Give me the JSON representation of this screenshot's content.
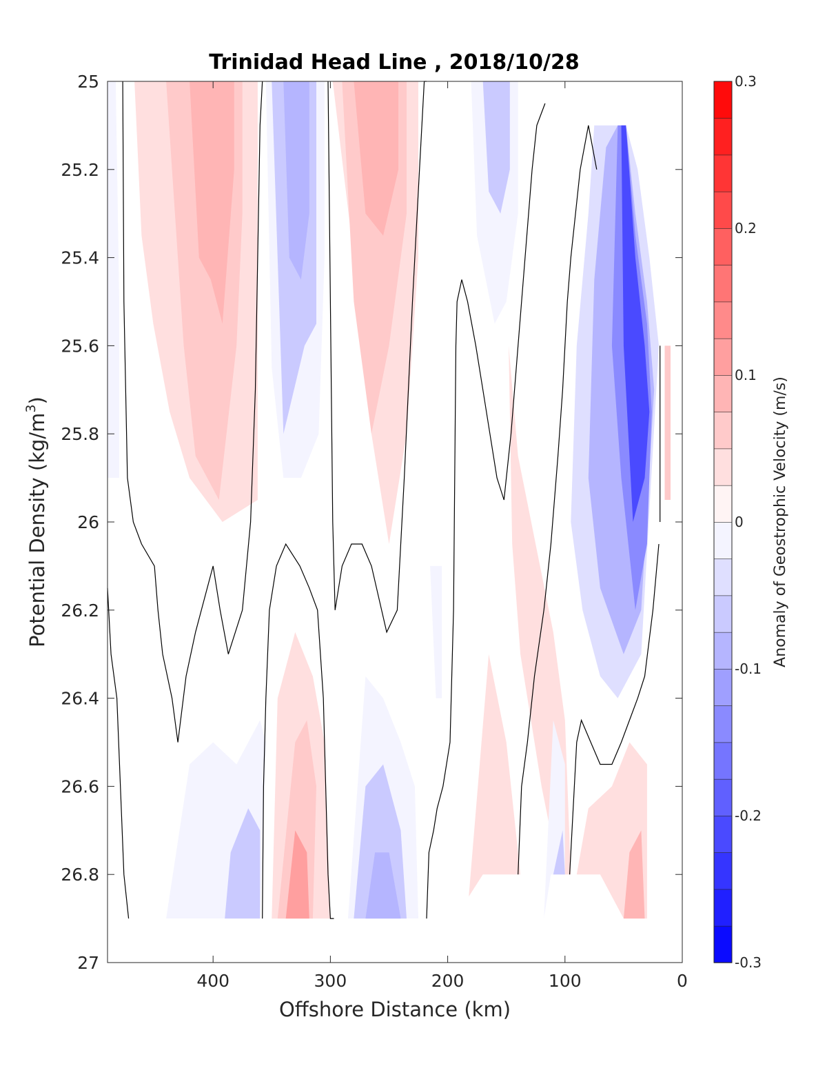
{
  "chart_data": {
    "type": "contour",
    "title": "Trinidad Head Line , 2018/10/28",
    "xlabel": "Offshore Distance (km)",
    "ylabel_main": "Potential Density (kg/m",
    "ylabel_sup": "3",
    "ylabel_close": ")",
    "x_ticks": [
      "400",
      "300",
      "200",
      "100",
      "0"
    ],
    "x_tick_values": [
      400,
      300,
      200,
      100,
      0
    ],
    "xlim": [
      490,
      0
    ],
    "x_reversed": true,
    "y_ticks": [
      "25",
      "25.2",
      "25.4",
      "25.6",
      "25.8",
      "26",
      "26.2",
      "26.4",
      "26.6",
      "26.8",
      "27"
    ],
    "y_tick_values": [
      25,
      25.2,
      25.4,
      25.6,
      25.8,
      26,
      26.2,
      26.4,
      26.6,
      26.8,
      27
    ],
    "ylim": [
      25,
      27
    ],
    "y_reversed": true,
    "colorbar": {
      "label": "Anomaly of Geostrophic Velocity (m/s)",
      "ticks": [
        "0.3",
        "0.2",
        "0.1",
        "0",
        "-0.1",
        "-0.2",
        "-0.3"
      ],
      "tick_values": [
        0.3,
        0.2,
        0.1,
        0,
        -0.1,
        -0.2,
        -0.3
      ],
      "range": [
        -0.3,
        0.3
      ],
      "levels": 24,
      "colormap": "blue-white-red"
    },
    "regions": [
      {
        "x": [
          490,
          488,
          483,
          480,
          480,
          490
        ],
        "y": [
          25,
          25,
          25,
          25.5,
          25.9,
          25.9
        ],
        "value": -0.025
      },
      {
        "x": [
          467,
          450,
          430,
          420,
          400,
          380,
          370,
          368,
          362,
          362,
          392,
          420,
          437,
          451,
          461,
          467
        ],
        "y": [
          25,
          25,
          25,
          25,
          25,
          25,
          25,
          25,
          25,
          25.95,
          26.0,
          25.9,
          25.75,
          25.55,
          25.35,
          25
        ],
        "value": 0.025
      },
      {
        "x": [
          440,
          430,
          410,
          395,
          385,
          375,
          375,
          380,
          395,
          415,
          425,
          430,
          440
        ],
        "y": [
          25,
          25,
          25,
          25,
          25,
          25,
          25.3,
          25.6,
          25.95,
          25.85,
          25.6,
          25.4,
          25
        ],
        "value": 0.06
      },
      {
        "x": [
          420,
          410,
          400,
          392,
          382,
          382,
          392,
          402,
          412,
          420
        ],
        "y": [
          25,
          25,
          25,
          25,
          25,
          25.2,
          25.55,
          25.45,
          25.4,
          25
        ],
        "value": 0.09
      },
      {
        "x": [
          355,
          345,
          325,
          310,
          305,
          305,
          310,
          325,
          340,
          350,
          355
        ],
        "y": [
          25,
          25,
          25,
          25,
          25,
          25.4,
          25.8,
          25.9,
          25.9,
          25.65,
          25
        ],
        "value": -0.025
      },
      {
        "x": [
          350,
          340,
          325,
          312,
          312,
          322,
          340,
          350
        ],
        "y": [
          25,
          25,
          25,
          25,
          25.55,
          25.6,
          25.8,
          25
        ],
        "value": -0.06
      },
      {
        "x": [
          340,
          330,
          320,
          318,
          318,
          325,
          335,
          340
        ],
        "y": [
          25,
          25,
          25,
          25,
          25.3,
          25.45,
          25.4,
          25
        ],
        "value": -0.09
      },
      {
        "x": [
          298,
          280,
          260,
          240,
          225,
          225,
          235,
          250,
          265,
          280,
          298
        ],
        "y": [
          25,
          25,
          25,
          25,
          25,
          25.4,
          25.8,
          26.05,
          25.8,
          25.4,
          25
        ],
        "value": 0.025
      },
      {
        "x": [
          290,
          270,
          250,
          235,
          235,
          250,
          265,
          280,
          290
        ],
        "y": [
          25,
          25,
          25,
          25,
          25.3,
          25.6,
          25.8,
          25.5,
          25
        ],
        "value": 0.06
      },
      {
        "x": [
          280,
          265,
          250,
          242,
          242,
          255,
          270,
          280
        ],
        "y": [
          25,
          25,
          25,
          25,
          25.2,
          25.35,
          25.3,
          25
        ],
        "value": 0.09
      },
      {
        "x": [
          180,
          160,
          150,
          140,
          140,
          150,
          160,
          175,
          180
        ],
        "y": [
          25,
          25,
          25,
          25,
          25.3,
          25.5,
          25.55,
          25.35,
          25
        ],
        "value": -0.025
      },
      {
        "x": [
          170,
          160,
          150,
          147,
          147,
          155,
          165,
          170
        ],
        "y": [
          25,
          25,
          25,
          25,
          25.2,
          25.3,
          25.25,
          25
        ],
        "value": -0.06
      },
      {
        "x": [
          148,
          140,
          125,
          110,
          100,
          95,
          105,
          120,
          138,
          145,
          148
        ],
        "y": [
          25.6,
          25.85,
          26.05,
          26.25,
          26.45,
          26.8,
          26.8,
          26.6,
          26.3,
          26.05,
          25.6
        ],
        "value": 0.025
      },
      {
        "x": [
          75,
          70,
          60,
          48,
          38,
          28,
          20,
          35,
          55,
          70,
          85,
          95,
          90,
          80,
          75
        ],
        "y": [
          25.1,
          25.1,
          25.1,
          25.1,
          25.2,
          25.4,
          25.6,
          26.3,
          26.4,
          26.35,
          26.2,
          26.0,
          25.6,
          25.3,
          25.1
        ],
        "value": -0.03
      },
      {
        "x": [
          65,
          55,
          48,
          40,
          30,
          24,
          35,
          50,
          70,
          80,
          75,
          65
        ],
        "y": [
          25.15,
          25.1,
          25.1,
          25.3,
          25.5,
          25.7,
          26.2,
          26.3,
          26.15,
          25.9,
          25.45,
          25.15
        ],
        "value": -0.09
      },
      {
        "x": [
          55,
          48,
          40,
          30,
          26,
          30,
          40,
          52,
          60,
          55
        ],
        "y": [
          25.1,
          25.1,
          25.35,
          25.55,
          25.75,
          26.05,
          26.2,
          25.9,
          25.6,
          25.1
        ],
        "value": -0.15
      },
      {
        "x": [
          52,
          48,
          40,
          32,
          28,
          32,
          42,
          50,
          52
        ],
        "y": [
          25.1,
          25.1,
          25.4,
          25.6,
          25.75,
          25.9,
          26.0,
          25.6,
          25.1
        ],
        "value": -0.22
      },
      {
        "x": [
          15,
          10,
          10,
          15
        ],
        "y": [
          25.6,
          25.6,
          25.95,
          25.95
        ],
        "value": 0.05
      },
      {
        "x": [
          440,
          420,
          400,
          380,
          360,
          355,
          360,
          380,
          400,
          420,
          440
        ],
        "y": [
          26.9,
          26.9,
          26.9,
          26.9,
          26.9,
          26.5,
          26.45,
          26.55,
          26.5,
          26.55,
          26.9
        ],
        "value": -0.025
      },
      {
        "x": [
          390,
          375,
          360,
          360,
          370,
          385,
          390
        ],
        "y": [
          26.9,
          26.9,
          26.9,
          26.7,
          26.65,
          26.75,
          26.9
        ],
        "value": -0.06
      },
      {
        "x": [
          350,
          330,
          310,
          300,
          305,
          315,
          330,
          345,
          350
        ],
        "y": [
          26.9,
          26.9,
          26.9,
          26.9,
          26.5,
          26.35,
          26.25,
          26.4,
          26.9
        ],
        "value": 0.025
      },
      {
        "x": [
          345,
          330,
          315,
          312,
          320,
          330,
          345
        ],
        "y": [
          26.9,
          26.9,
          26.9,
          26.6,
          26.45,
          26.5,
          26.9
        ],
        "value": 0.06
      },
      {
        "x": [
          338,
          328,
          318,
          320,
          330,
          338
        ],
        "y": [
          26.9,
          26.9,
          26.9,
          26.75,
          26.7,
          26.9
        ],
        "value": 0.1
      },
      {
        "x": [
          285,
          265,
          245,
          225,
          228,
          240,
          255,
          270,
          285
        ],
        "y": [
          26.9,
          26.9,
          26.9,
          26.9,
          26.6,
          26.5,
          26.4,
          26.35,
          26.9
        ],
        "value": -0.025
      },
      {
        "x": [
          280,
          265,
          245,
          235,
          240,
          255,
          270,
          280
        ],
        "y": [
          26.9,
          26.9,
          26.9,
          26.9,
          26.7,
          26.55,
          26.6,
          26.9
        ],
        "value": -0.06
      },
      {
        "x": [
          270,
          260,
          245,
          240,
          250,
          262,
          270
        ],
        "y": [
          26.9,
          26.9,
          26.9,
          26.9,
          26.75,
          26.75,
          26.9
        ],
        "value": -0.09
      },
      {
        "x": [
          215,
          210,
          205,
          205,
          210,
          215
        ],
        "y": [
          26.1,
          26.1,
          26.1,
          26.4,
          26.4,
          26.1
        ],
        "value": -0.025
      },
      {
        "x": [
          182,
          170,
          160,
          145,
          138,
          150,
          165,
          182
        ],
        "y": [
          26.85,
          26.8,
          26.8,
          26.8,
          26.8,
          26.5,
          26.3,
          26.85
        ],
        "value": 0.025
      },
      {
        "x": [
          118,
          112,
          105,
          100,
          100,
          110,
          118
        ],
        "y": [
          26.9,
          26.8,
          26.8,
          26.8,
          26.55,
          26.45,
          26.9
        ],
        "value": -0.025
      },
      {
        "x": [
          110,
          105,
          100,
          102,
          110
        ],
        "y": [
          26.8,
          26.8,
          26.8,
          26.7,
          26.8
        ],
        "value": -0.06
      },
      {
        "x": [
          90,
          70,
          50,
          30,
          30,
          45,
          60,
          80,
          90
        ],
        "y": [
          26.8,
          26.8,
          26.9,
          26.9,
          26.55,
          26.5,
          26.6,
          26.65,
          26.8
        ],
        "value": 0.025
      },
      {
        "x": [
          50,
          40,
          32,
          35,
          45,
          50
        ],
        "y": [
          26.9,
          26.9,
          26.9,
          26.7,
          26.75,
          26.9
        ],
        "value": 0.09
      }
    ],
    "zero_contours": [
      {
        "x": [
          477,
          476,
          473,
          468,
          461,
          450,
          447,
          443,
          435,
          430,
          423,
          415,
          405,
          400,
          394,
          387,
          375,
          368,
          364,
          362,
          360,
          358
        ],
        "y": [
          25,
          25.5,
          25.9,
          26.0,
          26.05,
          26.1,
          26.2,
          26.3,
          26.4,
          26.5,
          26.35,
          26.25,
          26.15,
          26.1,
          26.2,
          26.3,
          26.2,
          26.0,
          25.7,
          25.4,
          25.1,
          25
        ]
      },
      {
        "x": [
          490,
          487,
          482,
          479,
          476,
          472
        ],
        "y": [
          26.15,
          26.3,
          26.4,
          26.6,
          26.8,
          26.9
        ]
      },
      {
        "x": [
          358,
          357,
          355,
          352,
          346,
          338,
          326,
          318,
          311,
          306,
          304,
          302,
          300,
          297
        ],
        "y": [
          26.9,
          26.6,
          26.4,
          26.2,
          26.1,
          26.05,
          26.1,
          26.15,
          26.2,
          26.4,
          26.6,
          26.8,
          26.9,
          26.9
        ]
      },
      {
        "x": [
          302,
          300,
          298,
          296,
          290,
          282,
          273,
          265,
          252,
          243,
          237,
          230,
          224,
          220,
          218
        ],
        "y": [
          25,
          25.5,
          26.0,
          26.2,
          26.1,
          26.05,
          26.05,
          26.1,
          26.25,
          26.2,
          25.9,
          25.5,
          25.2,
          25.0,
          25
        ]
      },
      {
        "x": [
          218,
          216,
          212,
          209,
          204,
          198,
          195,
          194,
          193,
          192,
          188,
          183,
          176,
          170,
          164,
          158,
          152,
          146,
          140,
          134,
          128,
          124,
          117
        ],
        "y": [
          26.9,
          26.75,
          26.7,
          26.65,
          26.6,
          26.5,
          26.2,
          25.9,
          25.6,
          25.5,
          25.45,
          25.5,
          25.6,
          25.7,
          25.8,
          25.9,
          25.95,
          25.8,
          25.6,
          25.4,
          25.2,
          25.1,
          25.05
        ]
      },
      {
        "x": [
          140,
          137,
          132,
          126,
          118,
          112,
          106,
          102,
          98,
          95,
          91,
          87,
          80,
          73
        ],
        "y": [
          26.8,
          26.6,
          26.5,
          26.35,
          26.2,
          26.05,
          25.85,
          25.7,
          25.5,
          25.4,
          25.3,
          25.2,
          25.1,
          25.2
        ]
      },
      {
        "x": [
          96,
          92,
          90,
          86,
          78,
          70,
          60,
          52,
          45,
          38,
          32,
          25,
          20
        ],
        "y": [
          26.8,
          26.6,
          26.5,
          26.45,
          26.5,
          26.55,
          26.55,
          26.5,
          26.45,
          26.4,
          26.35,
          26.2,
          26.05
        ]
      },
      {
        "x": [
          19,
          19,
          19
        ],
        "y": [
          25.6,
          25.8,
          26.0
        ]
      }
    ]
  }
}
